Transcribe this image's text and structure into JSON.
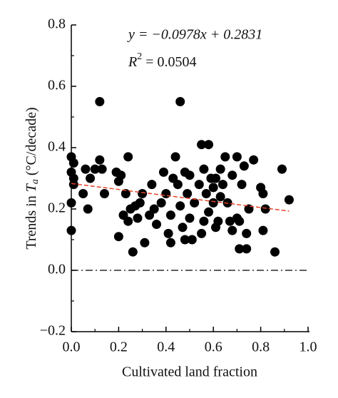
{
  "chart_data": {
    "type": "scatter",
    "y_label": {
      "prefix": "Trends in ",
      "symbol": "T",
      "subscript": "a",
      "suffix": " (°C/decade)"
    },
    "x_label": "Cultivated land fraction",
    "annotations": {
      "equation": "y = −0.0978x + 0.2831",
      "r2": {
        "symbol": "R",
        "sup": "2",
        "rest": " = 0.0504"
      }
    },
    "xlim": [
      0,
      1
    ],
    "ylim": [
      -0.2,
      0.8
    ],
    "xticks": [
      {
        "value": 0,
        "label": "0.0"
      },
      {
        "value": 0.2,
        "label": "0.2"
      },
      {
        "value": 0.4,
        "label": "0.4"
      },
      {
        "value": 0.6,
        "label": "0.6"
      },
      {
        "value": 0.8,
        "label": "0.8"
      },
      {
        "value": 1,
        "label": "1.0"
      }
    ],
    "yticks": [
      {
        "value": -0.2,
        "label": "−0.2"
      },
      {
        "value": 0,
        "label": "0.0"
      },
      {
        "value": 0.2,
        "label": "0.2"
      },
      {
        "value": 0.4,
        "label": "0.4"
      },
      {
        "value": 0.6,
        "label": "0.6"
      },
      {
        "value": 0.8,
        "label": "0.8"
      }
    ],
    "x_minor_ticks": [
      0.1,
      0.3,
      0.5,
      0.7,
      0.9
    ],
    "y_minor_ticks": [
      -0.1,
      0.1,
      0.3,
      0.5,
      0.7
    ],
    "color": "#000000",
    "x": [
      0.0,
      0.01,
      0.0,
      0.01,
      0.01,
      0.0,
      0.0,
      0.05,
      0.06,
      0.07,
      0.08,
      0.1,
      0.12,
      0.13,
      0.14,
      0.12,
      0.19,
      0.2,
      0.21,
      0.2,
      0.22,
      0.23,
      0.24,
      0.24,
      0.25,
      0.26,
      0.27,
      0.28,
      0.29,
      0.3,
      0.31,
      0.33,
      0.34,
      0.35,
      0.36,
      0.38,
      0.39,
      0.4,
      0.41,
      0.42,
      0.42,
      0.43,
      0.44,
      0.45,
      0.46,
      0.46,
      0.47,
      0.48,
      0.48,
      0.49,
      0.5,
      0.5,
      0.51,
      0.52,
      0.54,
      0.55,
      0.55,
      0.56,
      0.56,
      0.57,
      0.58,
      0.58,
      0.59,
      0.6,
      0.6,
      0.61,
      0.61,
      0.62,
      0.63,
      0.63,
      0.64,
      0.65,
      0.66,
      0.67,
      0.68,
      0.68,
      0.7,
      0.7,
      0.71,
      0.71,
      0.72,
      0.73,
      0.74,
      0.74,
      0.75,
      0.77,
      0.8,
      0.81,
      0.81,
      0.82,
      0.86,
      0.89,
      0.92
    ],
    "values": [
      0.37,
      0.35,
      0.32,
      0.3,
      0.28,
      0.22,
      0.13,
      0.25,
      0.33,
      0.2,
      0.3,
      0.33,
      0.36,
      0.33,
      0.25,
      0.55,
      0.32,
      0.29,
      0.31,
      0.11,
      0.18,
      0.25,
      0.37,
      0.16,
      0.2,
      0.06,
      0.21,
      0.17,
      0.22,
      0.25,
      0.09,
      0.18,
      0.28,
      0.2,
      0.15,
      0.22,
      0.32,
      0.25,
      0.12,
      0.18,
      0.09,
      0.3,
      0.37,
      0.28,
      0.55,
      0.21,
      0.14,
      0.1,
      0.32,
      0.25,
      0.31,
      0.17,
      0.1,
      0.22,
      0.28,
      0.12,
      0.41,
      0.33,
      0.16,
      0.25,
      0.41,
      0.19,
      0.3,
      0.27,
      0.22,
      0.3,
      0.14,
      0.16,
      0.24,
      0.33,
      0.28,
      0.37,
      0.22,
      0.16,
      0.31,
      0.13,
      0.37,
      0.17,
      0.16,
      0.07,
      0.28,
      0.34,
      0.12,
      0.07,
      0.2,
      0.36,
      0.27,
      0.25,
      0.13,
      0.2,
      0.06,
      0.33,
      0.23
    ],
    "trendline": {
      "color": "#e8442a",
      "x": [
        0,
        0.92
      ],
      "y": [
        0.2831,
        0.1931
      ]
    },
    "reference_line": 0
  }
}
